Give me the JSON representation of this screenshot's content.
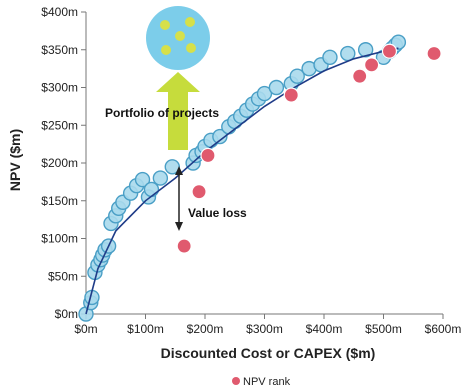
{
  "chart_data": {
    "type": "scatter",
    "xlabel": "Discounted Cost or CAPEX ($m)",
    "ylabel": "NPV ($m)",
    "xlim": [
      0,
      600
    ],
    "ylim": [
      0,
      400
    ],
    "x_ticks": [
      "$0m",
      "$100m",
      "$200m",
      "$300m",
      "$400m",
      "$500m",
      "$600m"
    ],
    "y_ticks": [
      "$0m",
      "$50m",
      "$100m",
      "$150m",
      "$200m",
      "$250m",
      "$300m",
      "$350m",
      "$400m"
    ],
    "grid": false,
    "legend_position": "bottom-center",
    "annotations": {
      "portfolio": "Portfolio of projects",
      "value_loss": "Value loss"
    },
    "colors": {
      "project_fill": "#a9d9ec",
      "project_stroke": "#4a9fc6",
      "npv_rank": "#e05a6e",
      "frontier_line": "#1f3c88",
      "arrow": "#c6dc3c",
      "portfolio_circle": "#7ccdea",
      "portfolio_dot": "#d6e04a"
    },
    "series": [
      {
        "role": "efficient-projects",
        "points": [
          [
            0,
            0
          ],
          [
            8,
            15
          ],
          [
            10,
            22
          ],
          [
            15,
            55
          ],
          [
            20,
            65
          ],
          [
            25,
            72
          ],
          [
            28,
            78
          ],
          [
            32,
            85
          ],
          [
            38,
            90
          ],
          [
            42,
            120
          ],
          [
            50,
            130
          ],
          [
            55,
            140
          ],
          [
            62,
            148
          ],
          [
            75,
            160
          ],
          [
            85,
            170
          ],
          [
            95,
            178
          ],
          [
            105,
            155
          ],
          [
            110,
            165
          ],
          [
            125,
            180
          ],
          [
            145,
            195
          ],
          [
            180,
            200
          ],
          [
            185,
            210
          ],
          [
            195,
            215
          ],
          [
            200,
            222
          ],
          [
            210,
            230
          ],
          [
            225,
            235
          ],
          [
            240,
            248
          ],
          [
            250,
            255
          ],
          [
            260,
            262
          ],
          [
            270,
            270
          ],
          [
            280,
            278
          ],
          [
            290,
            285
          ],
          [
            300,
            292
          ],
          [
            320,
            300
          ],
          [
            345,
            305
          ],
          [
            355,
            315
          ],
          [
            375,
            325
          ],
          [
            395,
            330
          ],
          [
            410,
            340
          ],
          [
            440,
            345
          ],
          [
            470,
            350
          ],
          [
            500,
            340
          ],
          [
            510,
            348
          ],
          [
            515,
            352
          ],
          [
            520,
            356
          ],
          [
            525,
            360
          ]
        ]
      },
      {
        "name": "NPV rank",
        "points": [
          [
            165,
            90
          ],
          [
            190,
            162
          ],
          [
            205,
            210
          ],
          [
            345,
            290
          ],
          [
            460,
            315
          ],
          [
            480,
            330
          ],
          [
            510,
            348
          ],
          [
            585,
            345
          ]
        ]
      }
    ],
    "frontier_curve": [
      [
        0,
        0
      ],
      [
        20,
        60
      ],
      [
        50,
        110
      ],
      [
        100,
        150
      ],
      [
        150,
        180
      ],
      [
        200,
        215
      ],
      [
        250,
        245
      ],
      [
        300,
        275
      ],
      [
        350,
        300
      ],
      [
        400,
        322
      ],
      [
        450,
        338
      ],
      [
        500,
        348
      ],
      [
        525,
        352
      ]
    ]
  }
}
